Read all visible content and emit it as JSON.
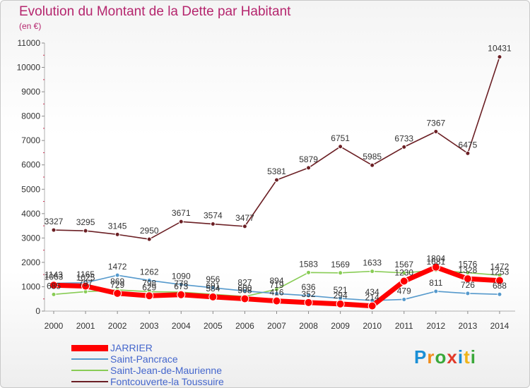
{
  "header": {
    "title": "Evolution du Montant de la Dette par Habitant",
    "subtitle": "(en €)"
  },
  "logo": {
    "letters": [
      "P",
      "r",
      "o",
      "x",
      "i",
      "t",
      "i"
    ],
    "colors": [
      "#1a8fd6",
      "#f08c1a",
      "#3aa83a",
      "#e23a2a",
      "#1a8fd6",
      "#f0b41a",
      "#3aa83a"
    ]
  },
  "chart_data": {
    "type": "line",
    "x": [
      2000,
      2001,
      2002,
      2003,
      2004,
      2005,
      2006,
      2007,
      2008,
      2009,
      2010,
      2011,
      2012,
      2013,
      2014
    ],
    "ylim": [
      0,
      11000
    ],
    "yticks": [
      0,
      1000,
      2000,
      3000,
      4000,
      5000,
      6000,
      7000,
      8000,
      9000,
      10000,
      11000
    ],
    "grid": false,
    "legend_position": "bottom-left",
    "series": [
      {
        "name": "JARRIER",
        "color": "#ff0000",
        "values": [
          1063,
          1025,
          729,
          629,
          673,
          584,
          508,
          416,
          352,
          294,
          214,
          1230,
          1804,
          1328,
          1253
        ],
        "labels": [
          "1063",
          "1025",
          "729",
          "629",
          "673",
          "584",
          "508",
          "416",
          "352",
          "294",
          "214",
          "1230",
          "1804",
          "1328",
          "1253"
        ]
      },
      {
        "name": "Saint-Pancrace",
        "color": "#5599cc",
        "values": [
          1143,
          1165,
          1472,
          1262,
          1090,
          956,
          827,
          719,
          636,
          521,
          434,
          479,
          811,
          726,
          688
        ],
        "labels": [
          "1143",
          "1165",
          "1472",
          "1262",
          "1090",
          "956",
          "827",
          "719",
          "636",
          "521",
          "434",
          "479",
          "811",
          "726",
          "688"
        ]
      },
      {
        "name": "Saint-Jean-de-Maurienne",
        "color": "#88cc55",
        "values": [
          685,
          797,
          869,
          798,
          778,
          691,
          600,
          894,
          1583,
          1569,
          1633,
          1567,
          1681,
          1576,
          1472
        ],
        "labels": [
          "685",
          "797",
          "869",
          "798",
          "778",
          "691",
          "600",
          "894",
          "1583",
          "1569",
          "1633",
          "1567",
          "1681",
          "1576",
          "1472"
        ]
      },
      {
        "name": "Fontcouverte-la Toussuire",
        "color": "#6b1f24",
        "values": [
          3327,
          3295,
          3145,
          2950,
          3671,
          3574,
          3477,
          5381,
          5879,
          6751,
          5985,
          6733,
          7367,
          6475,
          10431
        ],
        "labels": [
          "3327",
          "3295",
          "3145",
          "2950",
          "3671",
          "3574",
          "3477",
          "5381",
          "5879",
          "6751",
          "5985",
          "6733",
          "7367",
          "6475",
          "10431"
        ]
      }
    ]
  }
}
